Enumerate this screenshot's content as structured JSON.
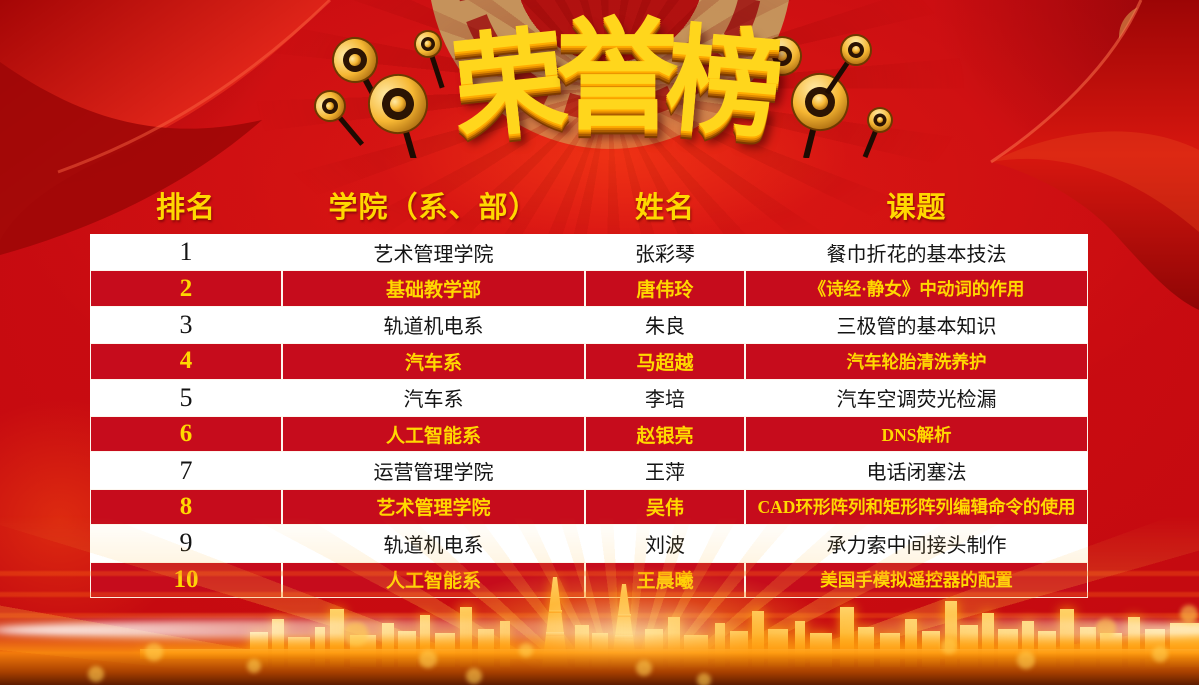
{
  "slide": {
    "title": "荣誉榜",
    "colors": {
      "background_red": "#c40a10",
      "row_red": "#c60c1c",
      "highlight_yellow": "#ffd800",
      "row_white": "#ffffff",
      "gold": "#f7b733",
      "body_text_black": "#141414"
    },
    "decorations": {
      "left_icon": "speaker-horns",
      "right_icon": "speaker-horns",
      "bottom_scene": "golden-city-skyline"
    }
  },
  "table": {
    "headers": [
      "排名",
      "学院（系、部）",
      "姓名",
      "课题"
    ],
    "rows": [
      {
        "rank": "1",
        "college": "艺术管理学院",
        "name": "张彩琴",
        "topic": "餐巾折花的基本技法"
      },
      {
        "rank": "2",
        "college": "基础教学部",
        "name": "唐伟玲",
        "topic": "《诗经·静女》中动词的作用"
      },
      {
        "rank": "3",
        "college": "轨道机电系",
        "name": "朱良",
        "topic": "三极管的基本知识"
      },
      {
        "rank": "4",
        "college": "汽车系",
        "name": "马超越",
        "topic": "汽车轮胎清洗养护"
      },
      {
        "rank": "5",
        "college": "汽车系",
        "name": "李培",
        "topic": "汽车空调荧光检漏"
      },
      {
        "rank": "6",
        "college": "人工智能系",
        "name": "赵银亮",
        "topic": "DNS解析"
      },
      {
        "rank": "7",
        "college": "运营管理学院",
        "name": "王萍",
        "topic": "电话闭塞法"
      },
      {
        "rank": "8",
        "college": "艺术管理学院",
        "name": "吴伟",
        "topic": "CAD环形阵列和矩形阵列编辑命令的使用"
      },
      {
        "rank": "9",
        "college": "轨道机电系",
        "name": "刘波",
        "topic": "承力索中间接头制作"
      },
      {
        "rank": "10",
        "college": "人工智能系",
        "name": "王晨曦",
        "topic": "美国手模拟遥控器的配置"
      }
    ]
  }
}
